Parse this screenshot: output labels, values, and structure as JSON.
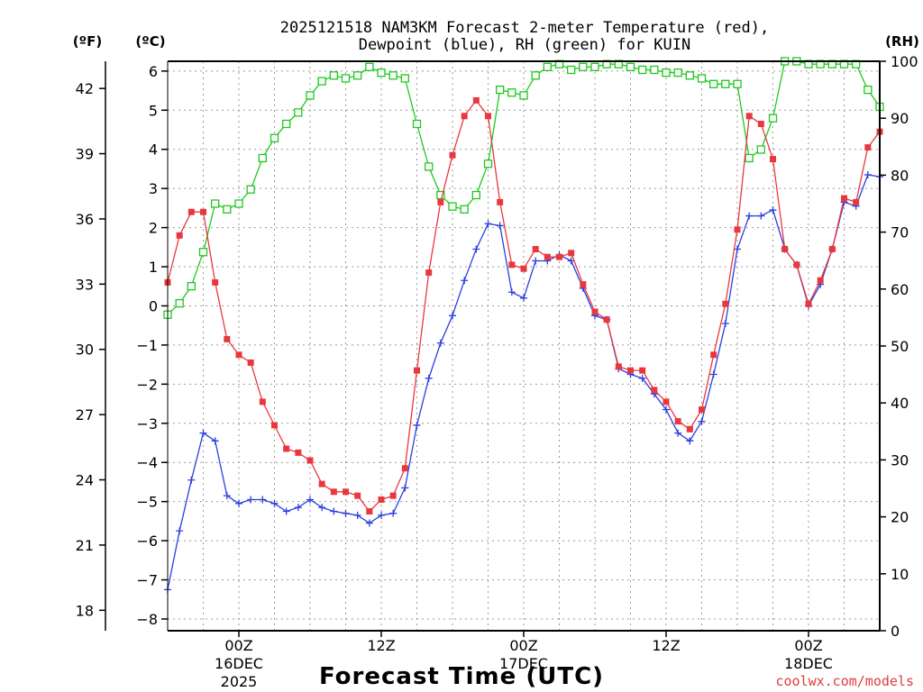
{
  "title_line1": "2025121518 NAM3KM Forecast 2-meter Temperature (red),",
  "title_line2": "Dewpoint (blue), RH (green) for KUIN",
  "unit_f": "(ºF)",
  "unit_c": "(ºC)",
  "unit_rh": "(RH)",
  "xlabel": "Forecast Time (UTC)",
  "credit": "coolwx.com/models",
  "colors": {
    "temp": "#e8383d",
    "dew": "#2b3fe0",
    "rh": "#1ec91e",
    "credit": "#e03c3c"
  },
  "chart_data": {
    "type": "line",
    "title": "2025121518 NAM3KM Forecast 2-meter Temperature (red), Dewpoint (blue), RH (green) for KUIN",
    "xlabel": "Forecast Time (UTC)",
    "x_unit": "forecast hour (0 = 2025-12-15 18Z)",
    "x": [
      0,
      1,
      2,
      3,
      4,
      5,
      6,
      7,
      8,
      9,
      10,
      11,
      12,
      13,
      14,
      15,
      16,
      17,
      18,
      19,
      20,
      21,
      22,
      23,
      24,
      25,
      26,
      27,
      28,
      29,
      30,
      31,
      32,
      33,
      34,
      35,
      36,
      37,
      38,
      39,
      40,
      41,
      42,
      43,
      44,
      45,
      46,
      47,
      48,
      49,
      50,
      51,
      52,
      53,
      54,
      55,
      56,
      57,
      58,
      59,
      60
    ],
    "xlim": [
      0,
      60
    ],
    "x_ticks": [
      {
        "x": 6,
        "label": "00Z",
        "sub1": "16DEC",
        "sub2": "2025"
      },
      {
        "x": 18,
        "label": "12Z",
        "sub1": "",
        "sub2": ""
      },
      {
        "x": 30,
        "label": "00Z",
        "sub1": "17DEC",
        "sub2": ""
      },
      {
        "x": 42,
        "label": "12Z",
        "sub1": "",
        "sub2": ""
      },
      {
        "x": 54,
        "label": "00Z",
        "sub1": "18DEC",
        "sub2": ""
      }
    ],
    "y_celsius": {
      "label": "(ºC)",
      "ylim": [
        -8.3,
        6.25
      ],
      "ticks": [
        -8,
        -7,
        -6,
        -5,
        -4,
        -3,
        -2,
        -1,
        0,
        1,
        2,
        3,
        4,
        5,
        6
      ]
    },
    "y_fahrenheit": {
      "label": "(ºF)",
      "ticks": [
        18,
        21,
        24,
        27,
        30,
        33,
        36,
        39,
        42
      ]
    },
    "y_rh": {
      "label": "(RH)",
      "ylim": [
        0,
        100
      ],
      "ticks": [
        0,
        10,
        20,
        30,
        40,
        50,
        60,
        70,
        80,
        90,
        100
      ]
    },
    "series": [
      {
        "name": "2-meter Temperature",
        "unit": "ºC",
        "color": "#e8383d",
        "marker": "filled-square",
        "values": [
          0.6,
          1.8,
          2.4,
          2.4,
          0.6,
          -0.85,
          -1.25,
          -1.45,
          -2.45,
          -3.05,
          -3.65,
          -3.75,
          -3.95,
          -4.55,
          -4.75,
          -4.75,
          -4.85,
          -5.25,
          -4.95,
          -4.85,
          -4.15,
          -1.65,
          0.85,
          2.65,
          3.85,
          4.85,
          5.25,
          4.85,
          2.65,
          1.05,
          0.95,
          1.45,
          1.25,
          1.25,
          1.35,
          0.55,
          -0.15,
          -0.35,
          -1.55,
          -1.65,
          -1.65,
          -2.15,
          -2.45,
          -2.95,
          -3.15,
          -2.65,
          -1.25,
          0.05,
          1.95,
          4.85,
          4.65,
          3.75,
          1.45,
          1.05,
          0.05,
          0.65,
          1.45,
          2.75,
          2.65,
          4.05,
          4.45
        ]
      },
      {
        "name": "Dewpoint",
        "unit": "ºC",
        "color": "#2b3fe0",
        "marker": "plus",
        "values": [
          -7.25,
          -5.75,
          -4.45,
          -3.25,
          -3.45,
          -4.85,
          -5.05,
          -4.95,
          -4.95,
          -5.05,
          -5.25,
          -5.15,
          -4.95,
          -5.15,
          -5.25,
          -5.3,
          -5.35,
          -5.55,
          -5.35,
          -5.3,
          -4.65,
          -3.05,
          -1.85,
          -0.95,
          -0.25,
          0.65,
          1.45,
          2.1,
          2.05,
          0.35,
          0.2,
          1.15,
          1.15,
          1.3,
          1.15,
          0.45,
          -0.25,
          -0.35,
          -1.6,
          -1.75,
          -1.85,
          -2.25,
          -2.65,
          -3.25,
          -3.45,
          -2.95,
          -1.75,
          -0.45,
          1.45,
          2.3,
          2.3,
          2.45,
          1.45,
          1.05,
          0,
          0.55,
          1.45,
          2.65,
          2.55,
          3.35,
          3.3
        ]
      },
      {
        "name": "Relative Humidity",
        "unit": "%",
        "color": "#1ec91e",
        "marker": "open-square",
        "values": [
          55.5,
          57.5,
          60.5,
          66.5,
          75,
          74,
          75,
          77.5,
          83,
          86.5,
          89,
          91,
          94,
          96.5,
          97.5,
          97,
          97.5,
          99,
          98,
          97.5,
          97,
          89,
          81.5,
          76.5,
          74.5,
          74,
          76.5,
          82,
          95,
          94.5,
          94,
          97.5,
          99,
          99.5,
          98.5,
          99,
          99,
          99.5,
          99.5,
          99,
          98.5,
          98.5,
          98,
          98,
          97.5,
          97,
          96,
          96,
          96,
          83,
          84.5,
          90,
          100,
          100,
          99.5,
          99.5,
          99.5,
          99.5,
          99.5,
          95,
          92
        ]
      }
    ]
  }
}
